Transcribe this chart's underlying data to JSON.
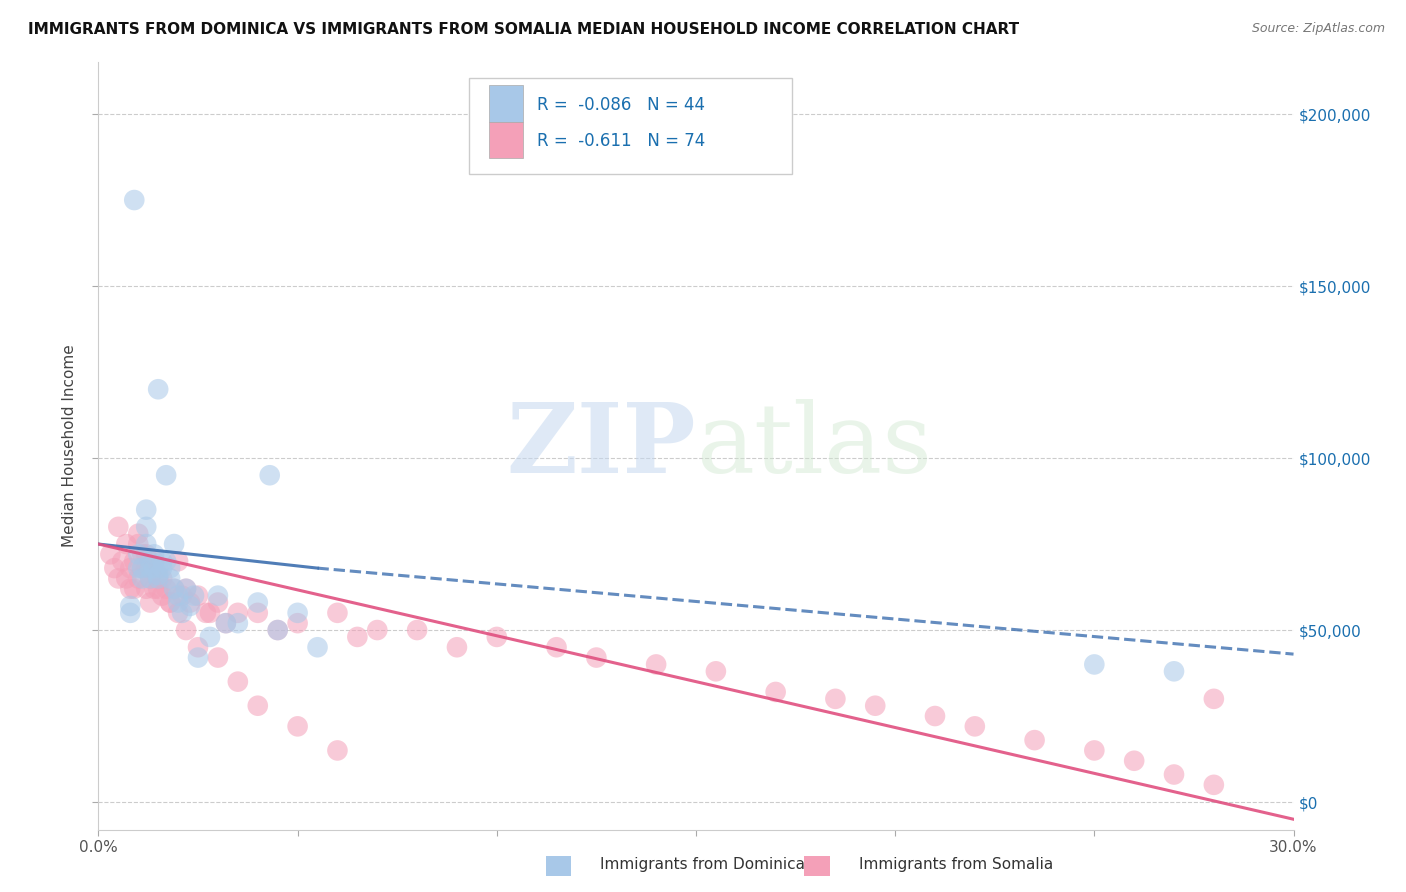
{
  "title": "IMMIGRANTS FROM DOMINICA VS IMMIGRANTS FROM SOMALIA MEDIAN HOUSEHOLD INCOME CORRELATION CHART",
  "source": "Source: ZipAtlas.com",
  "ylabel": "Median Household Income",
  "xlim": [
    0,
    0.3
  ],
  "ylim": [
    -8000,
    215000
  ],
  "yticks": [
    0,
    50000,
    100000,
    150000,
    200000
  ],
  "xticks": [
    0.0,
    0.05,
    0.1,
    0.15,
    0.2,
    0.25,
    0.3
  ],
  "watermark_zip": "ZIP",
  "watermark_atlas": "atlas",
  "legend_text1": "R =  -0.086   N = 44",
  "legend_text2": "R =  -0.611   N = 74",
  "color_blue": "#a8c8e8",
  "color_blue_line": "#3d6faf",
  "color_pink": "#f4a0b8",
  "color_pink_line": "#e05080",
  "dominica_x": [
    0.008,
    0.008,
    0.009,
    0.01,
    0.01,
    0.011,
    0.011,
    0.012,
    0.012,
    0.012,
    0.013,
    0.013,
    0.013,
    0.014,
    0.014,
    0.015,
    0.015,
    0.015,
    0.016,
    0.016,
    0.017,
    0.017,
    0.018,
    0.018,
    0.019,
    0.019,
    0.02,
    0.02,
    0.021,
    0.022,
    0.023,
    0.024,
    0.025,
    0.028,
    0.03,
    0.032,
    0.035,
    0.04,
    0.043,
    0.045,
    0.05,
    0.055,
    0.25,
    0.27
  ],
  "dominica_y": [
    55000,
    57000,
    175000,
    68000,
    72000,
    65000,
    68000,
    80000,
    85000,
    75000,
    70000,
    68000,
    65000,
    68000,
    72000,
    66000,
    120000,
    65000,
    70000,
    68000,
    95000,
    70000,
    65000,
    68000,
    62000,
    75000,
    58000,
    60000,
    55000,
    62000,
    57000,
    60000,
    42000,
    48000,
    60000,
    52000,
    52000,
    58000,
    95000,
    50000,
    55000,
    45000,
    40000,
    38000
  ],
  "somalia_x": [
    0.003,
    0.004,
    0.005,
    0.005,
    0.006,
    0.007,
    0.007,
    0.008,
    0.008,
    0.009,
    0.009,
    0.01,
    0.01,
    0.011,
    0.011,
    0.012,
    0.012,
    0.013,
    0.013,
    0.014,
    0.014,
    0.015,
    0.015,
    0.016,
    0.016,
    0.017,
    0.018,
    0.019,
    0.02,
    0.021,
    0.022,
    0.023,
    0.025,
    0.027,
    0.03,
    0.032,
    0.035,
    0.04,
    0.045,
    0.05,
    0.06,
    0.065,
    0.07,
    0.08,
    0.09,
    0.1,
    0.115,
    0.125,
    0.14,
    0.155,
    0.17,
    0.185,
    0.195,
    0.21,
    0.22,
    0.235,
    0.25,
    0.26,
    0.27,
    0.28,
    0.01,
    0.012,
    0.015,
    0.018,
    0.02,
    0.022,
    0.025,
    0.03,
    0.035,
    0.04,
    0.05,
    0.06,
    0.028,
    0.28
  ],
  "somalia_y": [
    72000,
    68000,
    80000,
    65000,
    70000,
    75000,
    65000,
    68000,
    62000,
    70000,
    62000,
    75000,
    65000,
    68000,
    72000,
    62000,
    68000,
    65000,
    58000,
    70000,
    62000,
    65000,
    68000,
    60000,
    65000,
    62000,
    58000,
    62000,
    70000,
    60000,
    62000,
    58000,
    60000,
    55000,
    58000,
    52000,
    55000,
    55000,
    50000,
    52000,
    55000,
    48000,
    50000,
    50000,
    45000,
    48000,
    45000,
    42000,
    40000,
    38000,
    32000,
    30000,
    28000,
    25000,
    22000,
    18000,
    15000,
    12000,
    8000,
    30000,
    78000,
    72000,
    62000,
    58000,
    55000,
    50000,
    45000,
    42000,
    35000,
    28000,
    22000,
    15000,
    55000,
    5000
  ]
}
